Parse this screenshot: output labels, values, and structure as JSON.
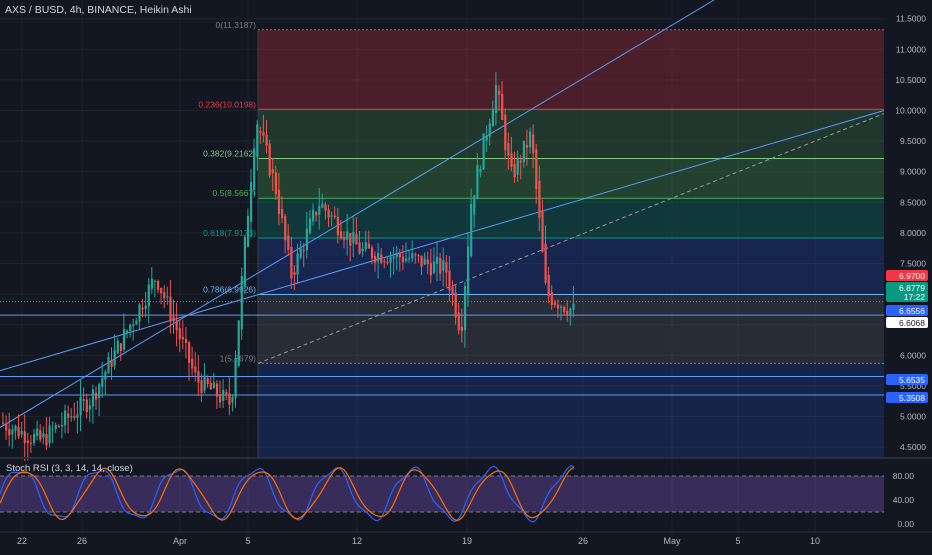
{
  "header": {
    "symbol_label": "AXS / BUSD, 4h, BINANCE, Heikin Ashi"
  },
  "indicator": {
    "label": "Stoch RSI (3, 3, 14, 14, close)"
  },
  "price_axis": {
    "ticks": [
      "11.5000",
      "11.0000",
      "10.5000",
      "10.0000",
      "9.5000",
      "9.0000",
      "8.5000",
      "8.0000",
      "7.5000",
      "7.0000",
      "6.5000",
      "6.0000",
      "5.5000",
      "5.0000",
      "4.5000"
    ]
  },
  "rsi_axis": {
    "ticks": [
      "80.00",
      "40.00",
      "0.00"
    ]
  },
  "time_axis": {
    "ticks": [
      "22",
      "26",
      "Apr",
      "5",
      "12",
      "19",
      "26",
      "May",
      "5",
      "10"
    ]
  },
  "fib": {
    "levels": [
      {
        "label": "0(11.3187)",
        "color": "#787b86"
      },
      {
        "label": "0.236(10.0198)",
        "color": "#f23645"
      },
      {
        "label": "0.382(9.2162)",
        "color": "#81c784"
      },
      {
        "label": "0.5(8.5667)",
        "color": "#4caf50"
      },
      {
        "label": "0.618(7.9173)",
        "color": "#089981"
      },
      {
        "label": "0.786(6.9926)",
        "color": "#64b5f6"
      },
      {
        "label": "1(5.8679)",
        "color": "#787b86"
      }
    ]
  },
  "price_tags": [
    {
      "text": "6.9700",
      "bg": "#f23645"
    },
    {
      "text": "6.8779",
      "bg": "#089981"
    },
    {
      "text": "17:22",
      "bg": "#089981"
    },
    {
      "text": "6.6556",
      "bg": "#2962ff"
    },
    {
      "text": "6.6068",
      "bg": "#ffffff"
    },
    {
      "text": "5.6535",
      "bg": "#2962ff"
    },
    {
      "text": "5.3508",
      "bg": "#2962ff"
    }
  ],
  "colors": {
    "up": "#26a69a",
    "down": "#ef5350",
    "bg": "#131722",
    "accent": "#2962ff"
  },
  "chart_data": {
    "type": "candlestick",
    "title": "AXS / BUSD, 4h, BINANCE, Heikin Ashi",
    "ylim": [
      4.4,
      11.7
    ],
    "x_ticks": [
      "22",
      "26",
      "Apr",
      "5",
      "12",
      "19",
      "26",
      "May",
      "5",
      "10"
    ],
    "y_ticks": [
      11.5,
      11.0,
      10.5,
      10.0,
      9.5,
      9.0,
      8.5,
      8.0,
      7.5,
      7.0,
      6.5,
      6.0,
      5.5,
      5.0,
      4.5
    ],
    "fib_levels": [
      11.3187,
      10.0198,
      9.2162,
      8.5667,
      7.9173,
      6.9926,
      5.8679
    ],
    "horizontal_lines": [
      6.6556,
      5.6535,
      5.3508
    ],
    "last_price": 6.8779,
    "price_key_points": [
      {
        "t": "Mar 20",
        "close": 4.9
      },
      {
        "t": "Mar 24",
        "close": 4.6
      },
      {
        "t": "Mar 28",
        "close": 5.3
      },
      {
        "t": "Mar 30",
        "close": 7.3
      },
      {
        "t": "Apr 2",
        "close": 5.6
      },
      {
        "t": "Apr 4",
        "close": 5.2
      },
      {
        "t": "Apr 5",
        "close": 9.9
      },
      {
        "t": "Apr 6",
        "close": 8.7
      },
      {
        "t": "Apr 7",
        "close": 7.3
      },
      {
        "t": "Apr 9",
        "close": 8.5
      },
      {
        "t": "Apr 12",
        "close": 7.7
      },
      {
        "t": "Apr 15",
        "close": 7.6
      },
      {
        "t": "Apr 17",
        "close": 7.4
      },
      {
        "t": "Apr 18",
        "close": 6.4
      },
      {
        "t": "Apr 19",
        "close": 8.5
      },
      {
        "t": "Apr 20",
        "close": 10.4
      },
      {
        "t": "Apr 21",
        "close": 8.9
      },
      {
        "t": "Apr 22",
        "close": 9.6
      },
      {
        "t": "Apr 23",
        "close": 7.0
      },
      {
        "t": "Apr 25",
        "close": 6.7
      }
    ],
    "stoch_rsi": {
      "ylim": [
        0,
        100
      ],
      "upper_band": 80,
      "lower_band": 20,
      "y_ticks": [
        80,
        40,
        0
      ]
    }
  }
}
